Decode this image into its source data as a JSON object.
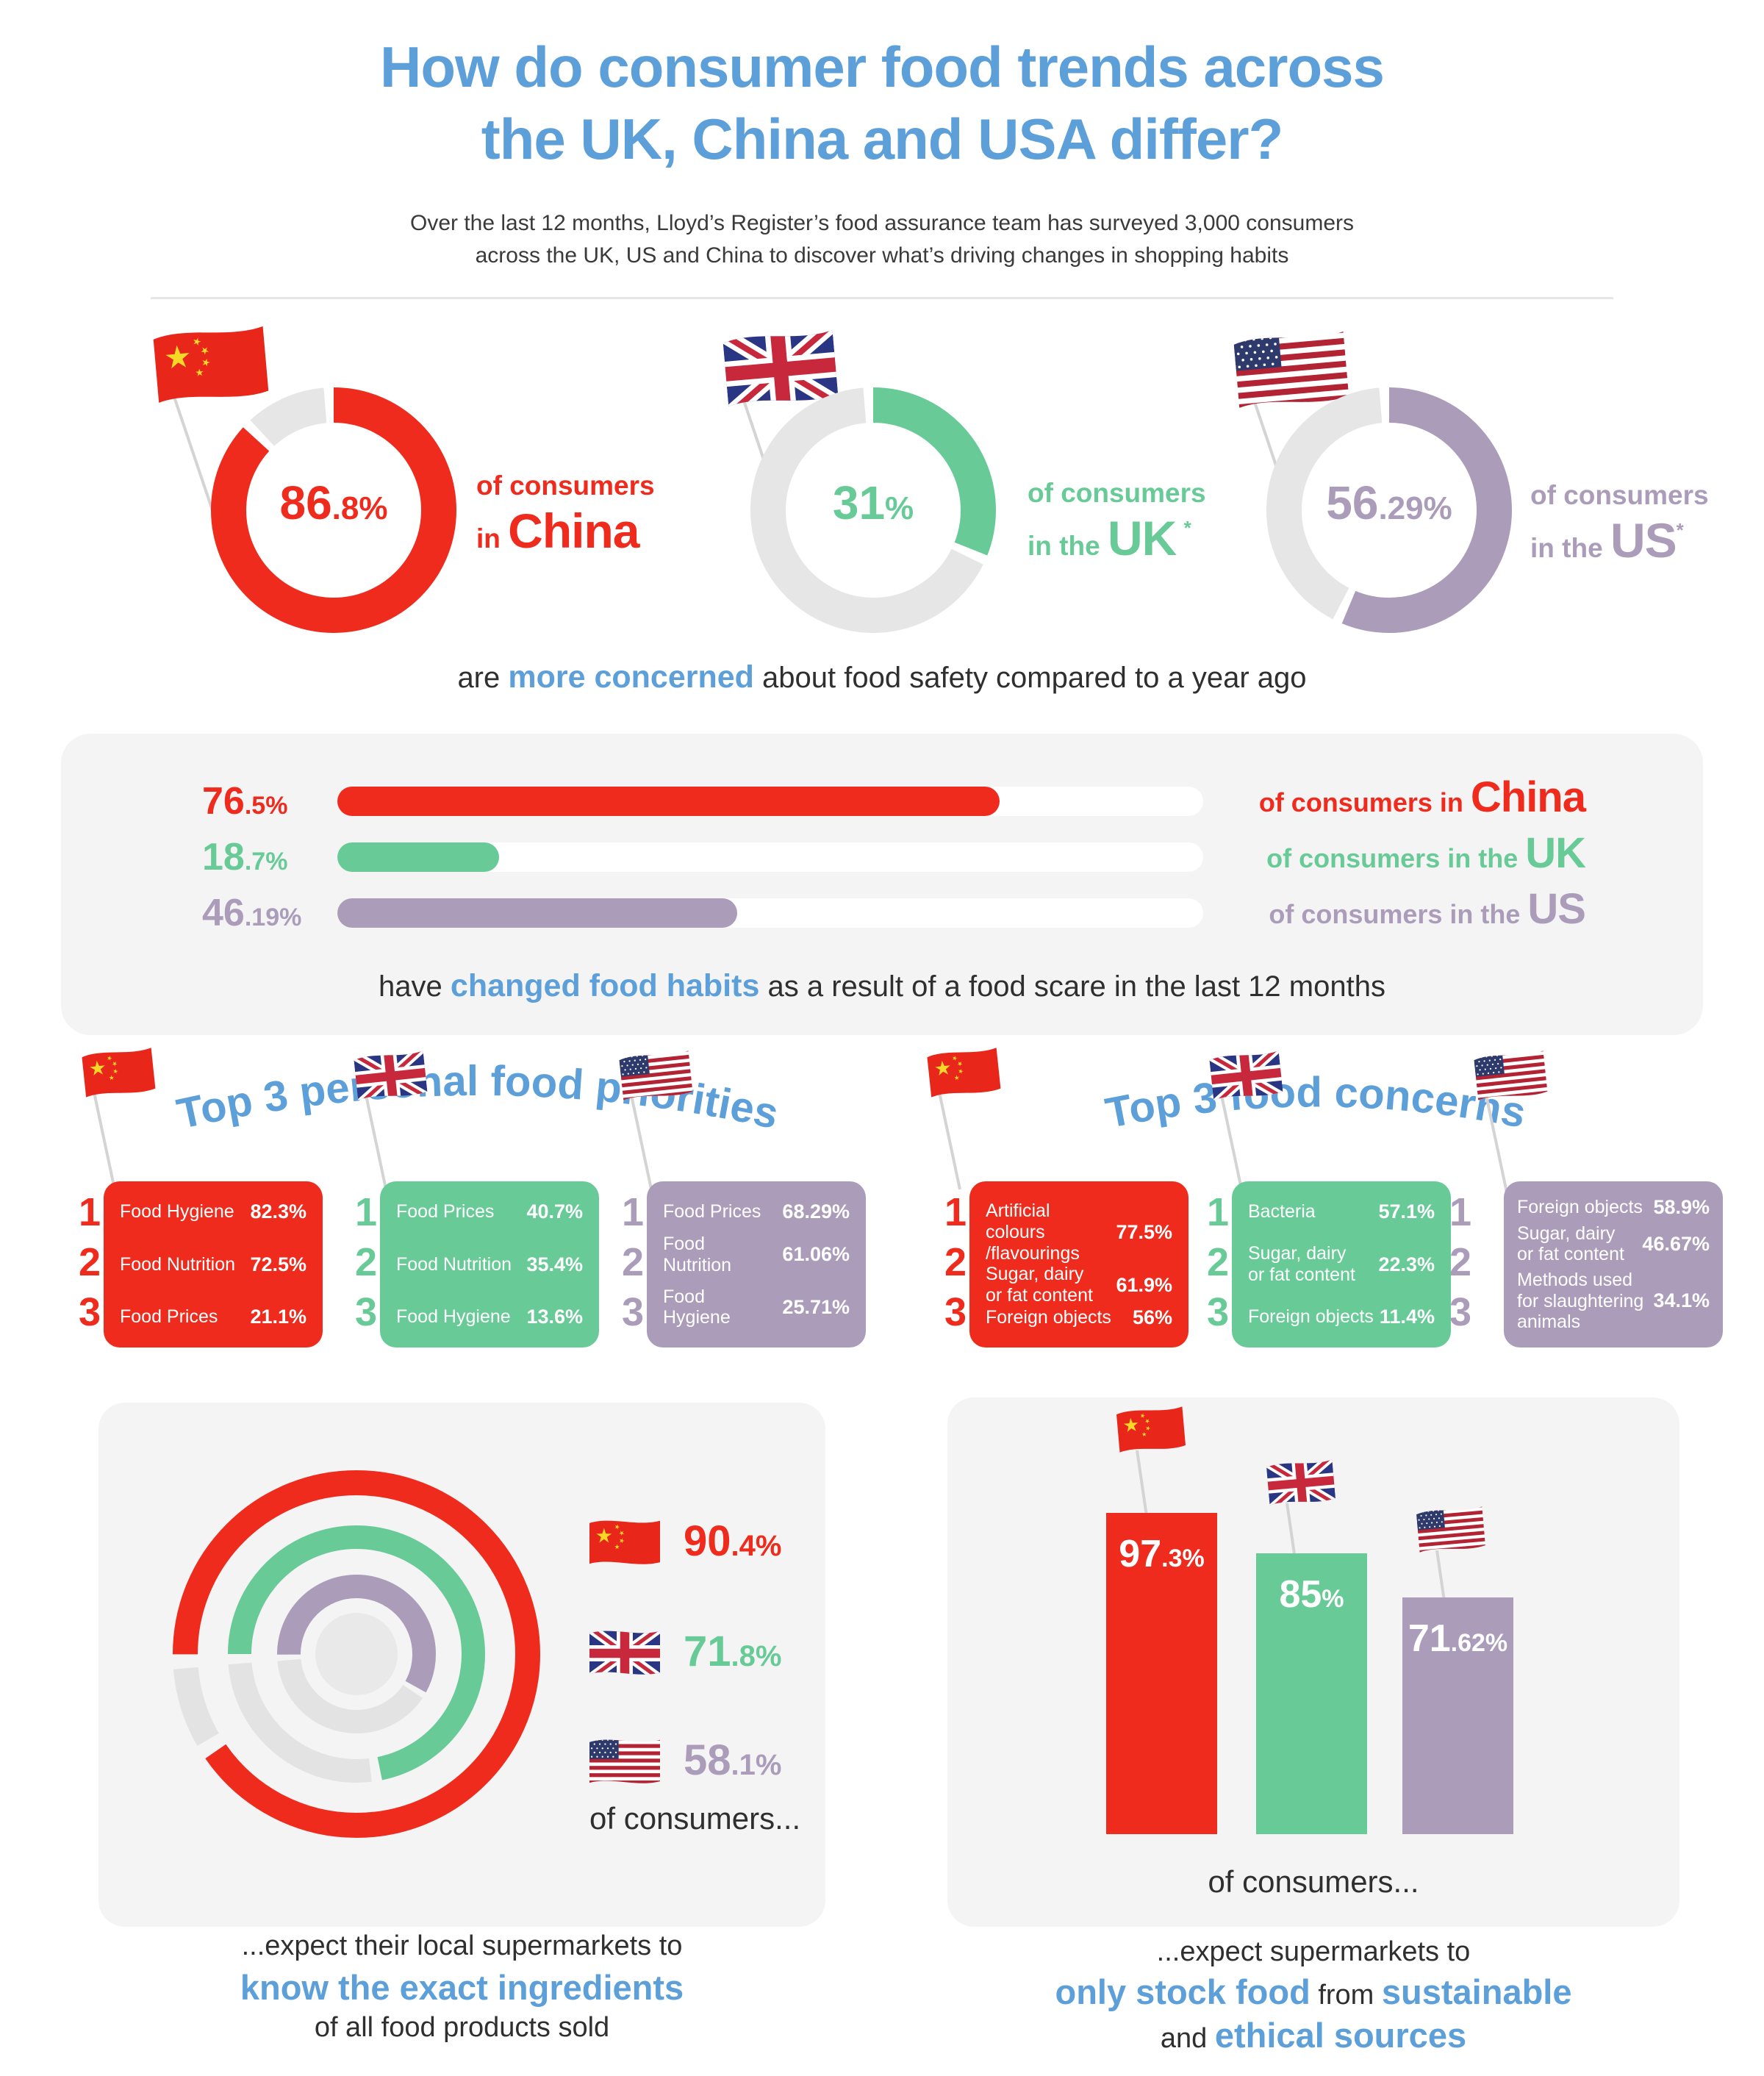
{
  "colors": {
    "china_red": "#ee2b1c",
    "uk_green": "#68cb97",
    "us_purple": "#ab9cba",
    "accent_blue": "#5c9fd9",
    "track_gray": "#e6e6e6",
    "panel_gray": "#f4f4f4",
    "dark_text": "#2f2f2f"
  },
  "header": {
    "title_line1": "How do consumer food trends across",
    "title_line2": "the UK, China and USA differ?",
    "subtitle_line1": "Over the last 12 months, Lloyd’s Register’s food assurance team has surveyed 3,000 consumers",
    "subtitle_line2": "across the UK, US and China to discover what’s driving changes in shopping habits"
  },
  "safety_donuts": {
    "caption_pre": "are ",
    "caption_highlight": "more concerned",
    "caption_post": " about food safety compared to a year ago",
    "items": [
      {
        "country": "China",
        "value": 86.8,
        "percent_int": "86",
        "percent_frac": ".8%",
        "label_top": "of consumers",
        "label_pre": "in ",
        "label_country": "China",
        "asterisk": ""
      },
      {
        "country": "UK",
        "value": 31,
        "percent_int": "31",
        "percent_frac": "%",
        "label_top": "of consumers",
        "label_pre": "in the ",
        "label_country": "UK",
        "asterisk": "*"
      },
      {
        "country": "US",
        "value": 56.29,
        "percent_int": "56",
        "percent_frac": ".29%",
        "label_top": "of  consumers",
        "label_pre": "in the ",
        "label_country": "US",
        "asterisk": "*"
      }
    ]
  },
  "habit_bars": {
    "caption_pre": "have ",
    "caption_highlight": "changed food habits",
    "caption_post": " as a result of a food scare in the last 12 months",
    "items": [
      {
        "country": "China",
        "value": 76.5,
        "percent_int": "76",
        "percent_frac": ".5%",
        "label_pre": "of consumers in ",
        "label_country": "China"
      },
      {
        "country": "UK",
        "value": 18.7,
        "percent_int": "18",
        "percent_frac": ".7%",
        "label_pre": "of consumers in the ",
        "label_country": "UK"
      },
      {
        "country": "US",
        "value": 46.19,
        "percent_int": "46",
        "percent_frac": ".19%",
        "label_pre": "of consumers in the ",
        "label_country": "US"
      }
    ]
  },
  "priorities": {
    "title": "Top 3 personal food priorities",
    "cards": [
      {
        "country": "China",
        "rows": [
          {
            "rank": "1",
            "label": "Food Hygiene",
            "value": "82.3%"
          },
          {
            "rank": "2",
            "label": "Food Nutrition",
            "value": "72.5%"
          },
          {
            "rank": "3",
            "label": "Food Prices",
            "value": "21.1%"
          }
        ]
      },
      {
        "country": "UK",
        "rows": [
          {
            "rank": "1",
            "label": "Food Prices",
            "value": "40.7%"
          },
          {
            "rank": "2",
            "label": "Food Nutrition",
            "value": "35.4%"
          },
          {
            "rank": "3",
            "label": "Food Hygiene",
            "value": "13.6%"
          }
        ]
      },
      {
        "country": "US",
        "rows": [
          {
            "rank": "1",
            "label": "Food Prices",
            "value": "68.29%"
          },
          {
            "rank": "2",
            "label": "Food Nutrition",
            "value": "61.06%"
          },
          {
            "rank": "3",
            "label": "Food Hygiene",
            "value": "25.71%"
          }
        ]
      }
    ]
  },
  "concerns": {
    "title": "Top 3 food concerns",
    "cards": [
      {
        "country": "China",
        "rows": [
          {
            "rank": "1",
            "label": "Artificial colours\n/flavourings",
            "value": "77.5%"
          },
          {
            "rank": "2",
            "label": "Sugar, dairy\nor fat content",
            "value": "61.9%"
          },
          {
            "rank": "3",
            "label": "Foreign objects",
            "value": "56%"
          }
        ]
      },
      {
        "country": "UK",
        "rows": [
          {
            "rank": "1",
            "label": "Bacteria",
            "value": "57.1%"
          },
          {
            "rank": "2",
            "label": "Sugar, dairy\nor fat content",
            "value": "22.3%"
          },
          {
            "rank": "3",
            "label": "Foreign objects",
            "value": "11.4%"
          }
        ]
      },
      {
        "country": "US",
        "rows": [
          {
            "rank": "1",
            "label": "Foreign objects",
            "value": "58.9%"
          },
          {
            "rank": "2",
            "label": "Sugar, dairy\nor fat content",
            "value": "46.67%"
          },
          {
            "rank": "3",
            "label": "Methods used\nfor slaughtering\nanimals",
            "value": "34.1%"
          }
        ]
      }
    ]
  },
  "ingredients": {
    "rings": [
      {
        "country": "China",
        "value": 90.4,
        "percent_int": "90",
        "percent_frac": ".4%"
      },
      {
        "country": "UK",
        "value": 71.8,
        "percent_int": "71",
        "percent_frac": ".8%"
      },
      {
        "country": "US",
        "value": 58.1,
        "percent_int": "58",
        "percent_frac": ".1%"
      }
    ],
    "suffix": "of consumers...",
    "caption_line1": "...expect their local supermarkets to",
    "caption_line2": "know the exact ingredients",
    "caption_line3": "of all food products sold"
  },
  "sustainable": {
    "bars": [
      {
        "country": "China",
        "value": 97.3,
        "percent_int": "97",
        "percent_frac": ".3%"
      },
      {
        "country": "UK",
        "value": 85,
        "percent_int": "85",
        "percent_frac": "%"
      },
      {
        "country": "US",
        "value": 71.62,
        "percent_int": "71",
        "percent_frac": ".62%"
      }
    ],
    "suffix": "of consumers...",
    "caption_line1": "...expect supermarkets to",
    "caption_line2_seg1": "only stock food",
    "caption_line2_seg2": " from ",
    "caption_line2_seg3": "sustainable",
    "caption_line3_seg1": "and ",
    "caption_line3_seg2": "ethical sources"
  },
  "chart_data": [
    {
      "type": "pie",
      "variant": "donut-trio",
      "title": "are more concerned about food safety compared to a year ago",
      "series": [
        {
          "name": "China",
          "value": 86.8
        },
        {
          "name": "UK",
          "value": 31
        },
        {
          "name": "US",
          "value": 56.29
        }
      ],
      "unit": "%"
    },
    {
      "type": "bar",
      "orientation": "horizontal",
      "title": "have changed food habits as a result of a food scare in the last 12 months",
      "categories": [
        "China",
        "UK",
        "US"
      ],
      "values": [
        76.5,
        18.7,
        46.19
      ],
      "xlim": [
        0,
        100
      ],
      "unit": "%"
    },
    {
      "type": "table",
      "title": "Top 3 personal food priorities",
      "columns": [
        "rank",
        "priority",
        "percent"
      ],
      "groups": {
        "China": [
          [
            "1",
            "Food Hygiene",
            "82.3%"
          ],
          [
            "2",
            "Food Nutrition",
            "72.5%"
          ],
          [
            "3",
            "Food Prices",
            "21.1%"
          ]
        ],
        "UK": [
          [
            "1",
            "Food Prices",
            "40.7%"
          ],
          [
            "2",
            "Food Nutrition",
            "35.4%"
          ],
          [
            "3",
            "Food Hygiene",
            "13.6%"
          ]
        ],
        "US": [
          [
            "1",
            "Food Prices",
            "68.29%"
          ],
          [
            "2",
            "Food Nutrition",
            "61.06%"
          ],
          [
            "3",
            "Food Hygiene",
            "25.71%"
          ]
        ]
      }
    },
    {
      "type": "table",
      "title": "Top 3 food concerns",
      "columns": [
        "rank",
        "concern",
        "percent"
      ],
      "groups": {
        "China": [
          [
            "1",
            "Artificial colours/flavourings",
            "77.5%"
          ],
          [
            "2",
            "Sugar, dairy or fat content",
            "61.9%"
          ],
          [
            "3",
            "Foreign objects",
            "56%"
          ]
        ],
        "UK": [
          [
            "1",
            "Bacteria",
            "57.1%"
          ],
          [
            "2",
            "Sugar, dairy or fat content",
            "22.3%"
          ],
          [
            "3",
            "Foreign objects",
            "11.4%"
          ]
        ],
        "US": [
          [
            "1",
            "Foreign objects",
            "58.9%"
          ],
          [
            "2",
            "Sugar, dairy or fat content",
            "46.67%"
          ],
          [
            "3",
            "Methods used for slaughtering animals",
            "34.1%"
          ]
        ]
      }
    },
    {
      "type": "pie",
      "variant": "concentric-rings",
      "title": "of consumers expect their local supermarkets to know the exact ingredients of all food products sold",
      "series": [
        {
          "name": "China",
          "value": 90.4
        },
        {
          "name": "UK",
          "value": 71.8
        },
        {
          "name": "US",
          "value": 58.1
        }
      ],
      "unit": "%"
    },
    {
      "type": "bar",
      "orientation": "vertical",
      "title": "of consumers expect supermarkets to only stock food from sustainable and ethical sources",
      "categories": [
        "China",
        "UK",
        "US"
      ],
      "values": [
        97.3,
        85,
        71.62
      ],
      "ylim": [
        0,
        100
      ],
      "unit": "%"
    }
  ]
}
